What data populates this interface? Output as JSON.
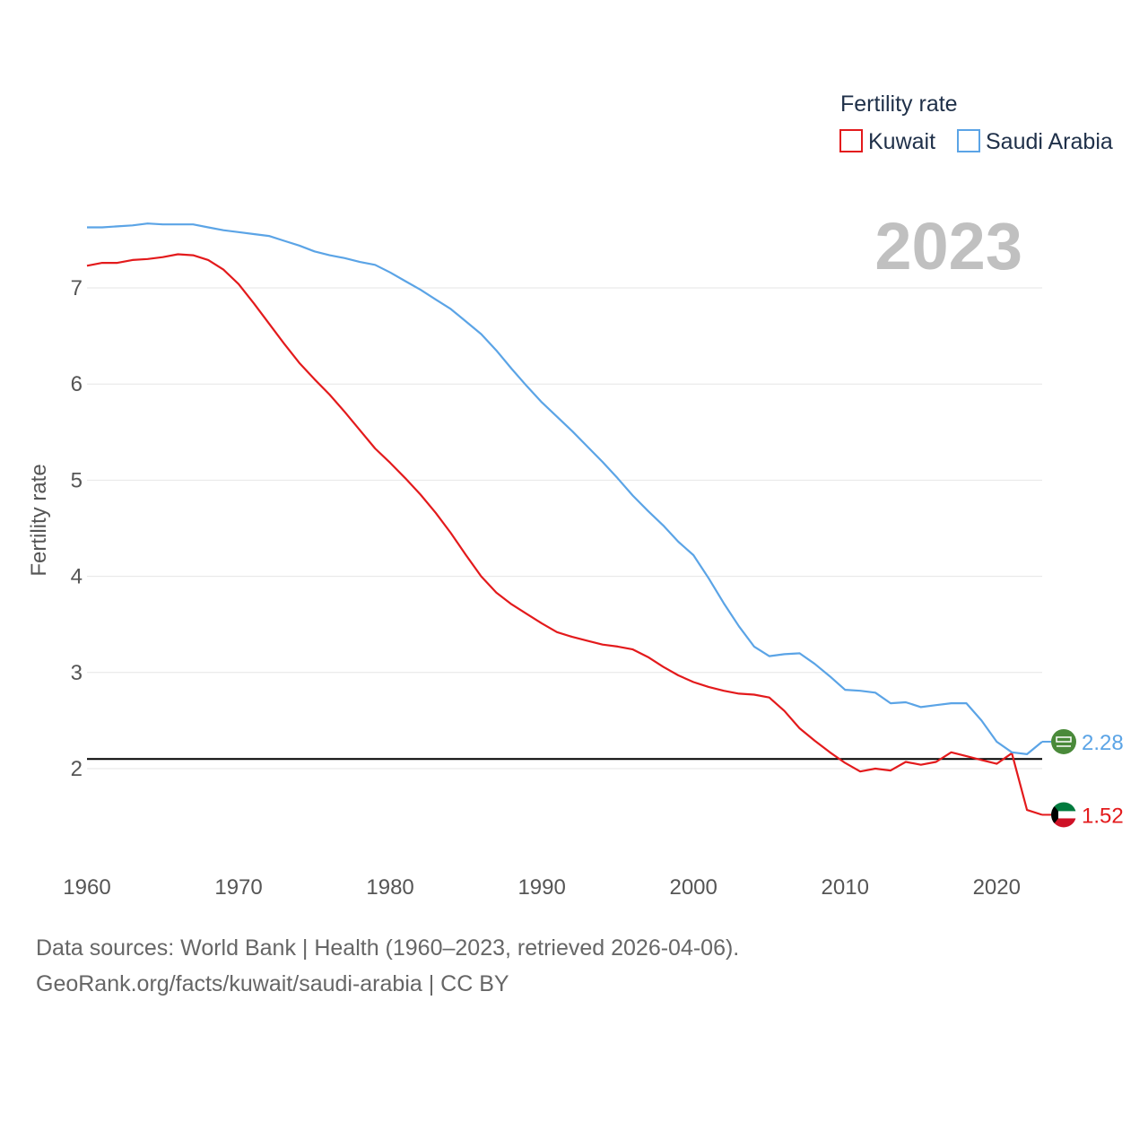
{
  "chart_data": {
    "type": "line",
    "title": "",
    "xlabel": "",
    "ylabel": "Fertility rate",
    "year_watermark": "2023",
    "legend_title": "Fertility rate",
    "legend_position": "top-right",
    "xlim": [
      1960,
      2023
    ],
    "ylim": [
      1.1,
      7.7
    ],
    "x_ticks": [
      1960,
      1970,
      1980,
      1990,
      2000,
      2010,
      2020
    ],
    "y_ticks": [
      2,
      3,
      4,
      5,
      6,
      7
    ],
    "reference_line": {
      "value": 2.1,
      "color": "#000000"
    },
    "x": [
      1960,
      1961,
      1962,
      1963,
      1964,
      1965,
      1966,
      1967,
      1968,
      1969,
      1970,
      1971,
      1972,
      1973,
      1974,
      1975,
      1976,
      1977,
      1978,
      1979,
      1980,
      1981,
      1982,
      1983,
      1984,
      1985,
      1986,
      1987,
      1988,
      1989,
      1990,
      1991,
      1992,
      1993,
      1994,
      1995,
      1996,
      1997,
      1998,
      1999,
      2000,
      2001,
      2002,
      2003,
      2004,
      2005,
      2006,
      2007,
      2008,
      2009,
      2010,
      2011,
      2012,
      2013,
      2014,
      2015,
      2016,
      2017,
      2018,
      2019,
      2020,
      2021,
      2022,
      2023
    ],
    "series": [
      {
        "name": "Kuwait",
        "color": "#e31a1c",
        "end_label": "1.52",
        "flag": "kuwait-flag",
        "values": [
          7.23,
          7.26,
          7.26,
          7.29,
          7.3,
          7.32,
          7.35,
          7.34,
          7.29,
          7.19,
          7.04,
          6.84,
          6.63,
          6.42,
          6.22,
          6.05,
          5.89,
          5.71,
          5.52,
          5.33,
          5.18,
          5.02,
          4.85,
          4.66,
          4.45,
          4.22,
          4.0,
          3.83,
          3.71,
          3.61,
          3.51,
          3.42,
          3.37,
          3.33,
          3.29,
          3.27,
          3.24,
          3.16,
          3.06,
          2.97,
          2.9,
          2.85,
          2.81,
          2.78,
          2.77,
          2.74,
          2.6,
          2.42,
          2.29,
          2.17,
          2.06,
          1.97,
          2.0,
          1.98,
          2.07,
          2.04,
          2.07,
          2.17,
          2.13,
          2.09,
          2.05,
          2.16,
          1.57,
          1.52
        ]
      },
      {
        "name": "Saudi Arabia",
        "color": "#5ba4e6",
        "end_label": "2.28",
        "flag": "saudi-arabia-flag",
        "values": [
          7.63,
          7.63,
          7.64,
          7.65,
          7.67,
          7.66,
          7.66,
          7.66,
          7.63,
          7.6,
          7.58,
          7.56,
          7.54,
          7.49,
          7.44,
          7.38,
          7.34,
          7.31,
          7.27,
          7.24,
          7.16,
          7.07,
          6.98,
          6.88,
          6.78,
          6.65,
          6.52,
          6.35,
          6.16,
          5.98,
          5.81,
          5.66,
          5.51,
          5.35,
          5.19,
          5.02,
          4.84,
          4.68,
          4.53,
          4.36,
          4.22,
          3.98,
          3.72,
          3.48,
          3.27,
          3.17,
          3.19,
          3.2,
          3.09,
          2.96,
          2.82,
          2.81,
          2.79,
          2.68,
          2.69,
          2.64,
          2.66,
          2.68,
          2.68,
          2.5,
          2.28,
          2.17,
          2.15,
          2.28
        ]
      }
    ]
  },
  "footer": {
    "sources": "Data sources: World Bank | Health (1960–2023, retrieved 2026-04-06).",
    "credit": "GeoRank.org/facts/kuwait/saudi-arabia | CC BY"
  }
}
